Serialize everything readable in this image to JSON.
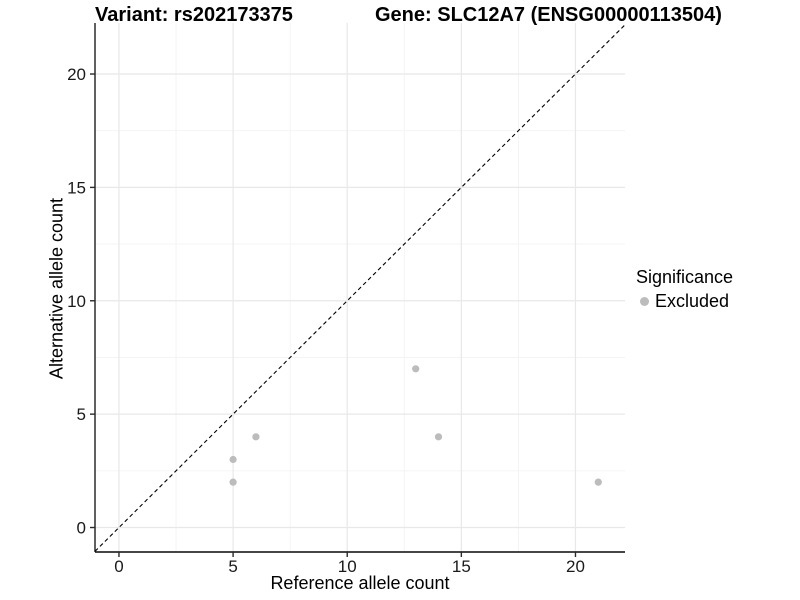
{
  "header": {
    "variant_title": "Variant: rs202173375",
    "gene_title": "Gene: SLC12A7 (ENSG00000113504)"
  },
  "chart_data": {
    "type": "scatter",
    "title": "Variant: rs202173375   Gene: SLC12A7 (ENSG00000113504)",
    "xlabel": "Reference allele count",
    "ylabel": "Alternative allele count",
    "xlim": [
      -1.05,
      22.17
    ],
    "ylim": [
      -1.08,
      22.25
    ],
    "x_ticks": [
      0,
      5,
      10,
      15,
      20
    ],
    "y_ticks": [
      0,
      5,
      10,
      15,
      20
    ],
    "x_minor_ticks": [
      2.5,
      7.5,
      12.5,
      17.5
    ],
    "y_minor_ticks": [
      2.5,
      7.5,
      12.5,
      17.5
    ],
    "grid": true,
    "identity_line": {
      "slope": 1,
      "intercept": 0,
      "style": "dashed",
      "color": "#000000"
    },
    "series": [
      {
        "name": "Excluded",
        "color": "#bcbcbc",
        "points": [
          [
            5,
            3
          ],
          [
            5,
            2
          ],
          [
            6,
            4
          ],
          [
            13,
            7
          ],
          [
            14,
            4
          ],
          [
            21,
            2
          ]
        ]
      }
    ],
    "legend": {
      "title": "Significance",
      "position": "right",
      "items": [
        {
          "label": "Excluded",
          "color": "#bcbcbc"
        }
      ]
    },
    "colors": {
      "grid_major": "#e8e8e8",
      "grid_minor": "#f3f3f3",
      "axis_line": "#2b2b2b",
      "tick_label": "#1a1a1a",
      "background": "#ffffff"
    }
  }
}
